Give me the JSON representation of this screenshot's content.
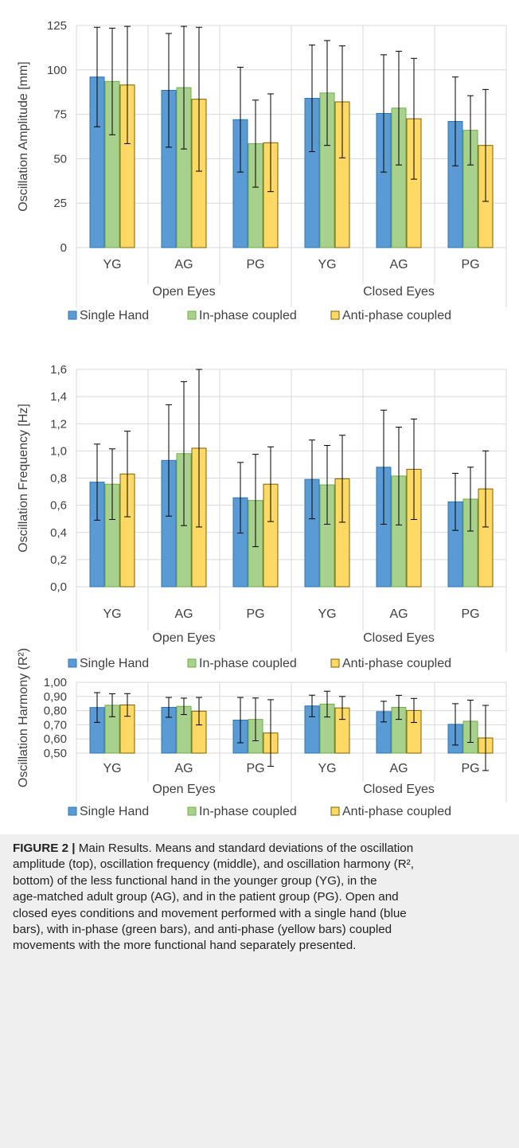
{
  "colors": {
    "single": "#5b9bd5",
    "single_border": "#2e75b6",
    "inphase": "#a9d18e",
    "inphase_border": "#70ad47",
    "antiphase": "#ffd966",
    "antiphase_border": "#7f6000",
    "grid": "#d9d9d9",
    "text": "#404040",
    "caption_bg": "#efefef"
  },
  "chart_data": [
    {
      "type": "bar",
      "ylabel": "Oscillation Amplitude [mm]",
      "ylim": [
        0,
        125
      ],
      "yticks": [
        "0",
        "25",
        "50",
        "75",
        "100",
        "125"
      ],
      "groups": [
        "Open Eyes",
        "Closed Eyes"
      ],
      "categories": [
        "YG",
        "AG",
        "PG",
        "YG",
        "AG",
        "PG"
      ],
      "legend_position": "bottom",
      "series": [
        {
          "name": "Single Hand",
          "values": [
            96,
            88.5,
            72,
            84,
            75.5,
            71
          ],
          "errors": [
            28,
            32,
            29.5,
            30,
            33,
            25
          ]
        },
        {
          "name": "In-phase coupled",
          "values": [
            93.5,
            90,
            58.5,
            87,
            78.5,
            66
          ],
          "errors": [
            30,
            34.5,
            24.5,
            29.5,
            32,
            19.5
          ]
        },
        {
          "name": "Anti-phase coupled",
          "values": [
            91.5,
            83.5,
            59,
            82,
            72.5,
            57.5
          ],
          "errors": [
            33,
            40.5,
            27.5,
            31.5,
            34,
            31.5
          ]
        }
      ]
    },
    {
      "type": "bar",
      "ylabel": "Oscillation Frequency [Hz]",
      "ylim": [
        0,
        1.6
      ],
      "yticks": [
        "0,0",
        "0,2",
        "0,4",
        "0,6",
        "0,8",
        "1,0",
        "1,2",
        "1,4",
        "1,6"
      ],
      "groups": [
        "Open Eyes",
        "Closed Eyes"
      ],
      "categories": [
        "YG",
        "AG",
        "PG",
        "YG",
        "AG",
        "PG"
      ],
      "legend_position": "bottom",
      "series": [
        {
          "name": "Single Hand",
          "values": [
            0.77,
            0.93,
            0.655,
            0.79,
            0.88,
            0.625
          ],
          "errors": [
            0.28,
            0.41,
            0.26,
            0.29,
            0.42,
            0.21
          ]
        },
        {
          "name": "In-phase coupled",
          "values": [
            0.755,
            0.98,
            0.635,
            0.75,
            0.815,
            0.645
          ],
          "errors": [
            0.26,
            0.53,
            0.34,
            0.29,
            0.36,
            0.235
          ]
        },
        {
          "name": "Anti-phase coupled",
          "values": [
            0.83,
            1.02,
            0.755,
            0.795,
            0.865,
            0.72
          ],
          "errors": [
            0.315,
            0.58,
            0.275,
            0.32,
            0.37,
            0.28
          ]
        }
      ]
    },
    {
      "type": "bar",
      "ylabel": "Oscillation Harmony (R²)",
      "ylim": [
        0.5,
        1.0
      ],
      "yticks": [
        "0,50",
        "0,60",
        "0,70",
        "0,80",
        "0,90",
        "1,00"
      ],
      "groups": [
        "Open Eyes",
        "Closed Eyes"
      ],
      "categories": [
        "YG",
        "AG",
        "PG",
        "YG",
        "AG",
        "PG"
      ],
      "legend_position": "bottom",
      "series": [
        {
          "name": "Single Hand",
          "values": [
            0.822,
            0.823,
            0.733,
            0.833,
            0.793,
            0.703
          ],
          "errors": [
            0.105,
            0.07,
            0.16,
            0.076,
            0.073,
            0.146
          ]
        },
        {
          "name": "In-phase coupled",
          "values": [
            0.838,
            0.83,
            0.738,
            0.846,
            0.823,
            0.725
          ],
          "errors": [
            0.081,
            0.058,
            0.151,
            0.091,
            0.085,
            0.149
          ]
        },
        {
          "name": "Anti-phase coupled",
          "values": [
            0.84,
            0.796,
            0.642,
            0.819,
            0.801,
            0.607
          ],
          "errors": [
            0.08,
            0.097,
            0.235,
            0.081,
            0.085,
            0.23
          ]
        }
      ]
    }
  ],
  "caption": {
    "label": "FIGURE 2 |",
    "lines": [
      " Main Results. Means and standard deviations of the oscillation",
      "amplitude (top), oscillation frequency (middle), and oscillation harmony (R²,",
      "bottom) of the less functional hand in the younger group (YG), in the",
      "age-matched adult group (AG), and in the patient group (PG). Open and",
      "closed eyes conditions and movement performed with a single hand (blue",
      "bars), with in-phase (green bars), and anti-phase (yellow bars) coupled",
      "movements with the more functional hand separately presented."
    ]
  }
}
